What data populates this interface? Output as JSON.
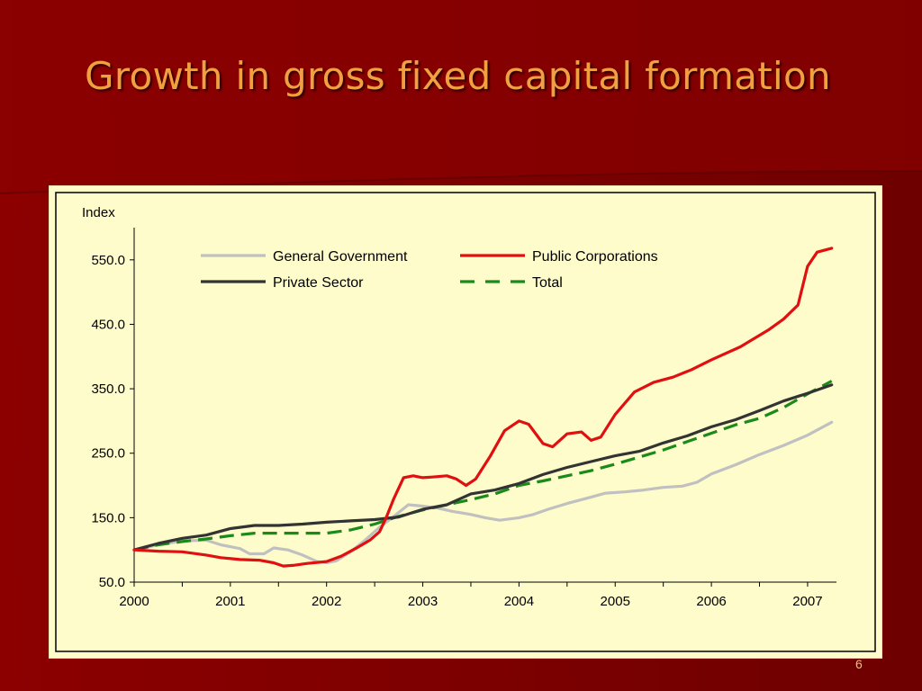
{
  "slide": {
    "title": "Growth in gross fixed capital formation",
    "page_number": "6",
    "colors": {
      "background": "#7a0000",
      "title": "#f0a040",
      "chart_background": "#fffccc"
    }
  },
  "chart_data": {
    "type": "line",
    "title": "",
    "xlabel": "",
    "ylabel": "Index",
    "ylim": [
      50,
      600
    ],
    "xlim": [
      2000,
      2007.3
    ],
    "y_ticks": [
      50,
      150,
      250,
      350,
      450,
      550
    ],
    "y_tick_labels": [
      "50.0",
      "150.0",
      "250.0",
      "350.0",
      "450.0",
      "550.0"
    ],
    "x_ticks": [
      2000,
      2001,
      2002,
      2003,
      2004,
      2005,
      2006,
      2007
    ],
    "x_tick_labels": [
      "2000",
      "2001",
      "2002",
      "2003",
      "2004",
      "2005",
      "2006",
      "2007"
    ],
    "grid": false,
    "legend_position": "top",
    "series": [
      {
        "name": "General Government",
        "color": "#c0c0c0",
        "dash": "solid",
        "points": [
          [
            2000.0,
            100
          ],
          [
            2000.25,
            108
          ],
          [
            2000.5,
            114
          ],
          [
            2000.75,
            115
          ],
          [
            2000.9,
            108
          ],
          [
            2001.1,
            102
          ],
          [
            2001.2,
            94
          ],
          [
            2001.35,
            94
          ],
          [
            2001.45,
            103
          ],
          [
            2001.6,
            100
          ],
          [
            2001.75,
            92
          ],
          [
            2001.9,
            82
          ],
          [
            2002.0,
            80
          ],
          [
            2002.1,
            83
          ],
          [
            2002.25,
            97
          ],
          [
            2002.4,
            115
          ],
          [
            2002.55,
            135
          ],
          [
            2002.7,
            152
          ],
          [
            2002.85,
            170
          ],
          [
            2003.0,
            168
          ],
          [
            2003.15,
            165
          ],
          [
            2003.3,
            160
          ],
          [
            2003.5,
            155
          ],
          [
            2003.65,
            150
          ],
          [
            2003.8,
            146
          ],
          [
            2004.0,
            150
          ],
          [
            2004.15,
            155
          ],
          [
            2004.3,
            163
          ],
          [
            2004.5,
            172
          ],
          [
            2004.7,
            180
          ],
          [
            2004.9,
            188
          ],
          [
            2005.1,
            190
          ],
          [
            2005.3,
            193
          ],
          [
            2005.5,
            197
          ],
          [
            2005.7,
            199
          ],
          [
            2005.85,
            205
          ],
          [
            2006.0,
            218
          ],
          [
            2006.25,
            232
          ],
          [
            2006.5,
            248
          ],
          [
            2006.75,
            262
          ],
          [
            2007.0,
            278
          ],
          [
            2007.25,
            298
          ]
        ]
      },
      {
        "name": "Public Corporations",
        "color": "#e01010",
        "dash": "solid",
        "points": [
          [
            2000.0,
            100
          ],
          [
            2000.25,
            98
          ],
          [
            2000.5,
            97
          ],
          [
            2000.75,
            92
          ],
          [
            2000.9,
            88
          ],
          [
            2001.1,
            85
          ],
          [
            2001.3,
            84
          ],
          [
            2001.45,
            80
          ],
          [
            2001.55,
            75
          ],
          [
            2001.65,
            76
          ],
          [
            2001.8,
            79
          ],
          [
            2002.0,
            82
          ],
          [
            2002.15,
            90
          ],
          [
            2002.3,
            102
          ],
          [
            2002.45,
            115
          ],
          [
            2002.55,
            128
          ],
          [
            2002.62,
            150
          ],
          [
            2002.7,
            180
          ],
          [
            2002.8,
            212
          ],
          [
            2002.9,
            215
          ],
          [
            2003.0,
            212
          ],
          [
            2003.1,
            213
          ],
          [
            2003.25,
            215
          ],
          [
            2003.35,
            210
          ],
          [
            2003.45,
            200
          ],
          [
            2003.55,
            210
          ],
          [
            2003.7,
            245
          ],
          [
            2003.85,
            285
          ],
          [
            2004.0,
            300
          ],
          [
            2004.1,
            295
          ],
          [
            2004.25,
            265
          ],
          [
            2004.35,
            260
          ],
          [
            2004.5,
            280
          ],
          [
            2004.65,
            283
          ],
          [
            2004.75,
            270
          ],
          [
            2004.85,
            275
          ],
          [
            2005.0,
            310
          ],
          [
            2005.2,
            345
          ],
          [
            2005.4,
            360
          ],
          [
            2005.6,
            368
          ],
          [
            2005.8,
            380
          ],
          [
            2006.0,
            395
          ],
          [
            2006.3,
            415
          ],
          [
            2006.6,
            442
          ],
          [
            2006.75,
            458
          ],
          [
            2006.9,
            480
          ],
          [
            2007.0,
            540
          ],
          [
            2007.1,
            562
          ],
          [
            2007.25,
            568
          ]
        ]
      },
      {
        "name": "Private Sector",
        "color": "#333333",
        "dash": "solid",
        "points": [
          [
            2000.0,
            100
          ],
          [
            2000.25,
            110
          ],
          [
            2000.5,
            118
          ],
          [
            2000.75,
            123
          ],
          [
            2001.0,
            133
          ],
          [
            2001.25,
            138
          ],
          [
            2001.5,
            138
          ],
          [
            2001.75,
            140
          ],
          [
            2002.0,
            143
          ],
          [
            2002.25,
            145
          ],
          [
            2002.5,
            147
          ],
          [
            2002.75,
            151
          ],
          [
            2003.0,
            163
          ],
          [
            2003.25,
            170
          ],
          [
            2003.5,
            187
          ],
          [
            2003.75,
            193
          ],
          [
            2004.0,
            203
          ],
          [
            2004.25,
            217
          ],
          [
            2004.5,
            228
          ],
          [
            2004.75,
            237
          ],
          [
            2005.0,
            246
          ],
          [
            2005.25,
            253
          ],
          [
            2005.5,
            266
          ],
          [
            2005.75,
            277
          ],
          [
            2006.0,
            291
          ],
          [
            2006.25,
            302
          ],
          [
            2006.5,
            316
          ],
          [
            2006.75,
            331
          ],
          [
            2007.0,
            343
          ],
          [
            2007.25,
            356
          ]
        ]
      },
      {
        "name": "Total",
        "color": "#1a8a1a",
        "dash": "dashed",
        "points": [
          [
            2000.0,
            100
          ],
          [
            2000.25,
            108
          ],
          [
            2000.5,
            113
          ],
          [
            2000.75,
            117
          ],
          [
            2001.0,
            122
          ],
          [
            2001.25,
            126
          ],
          [
            2001.5,
            126
          ],
          [
            2001.75,
            126
          ],
          [
            2002.0,
            126
          ],
          [
            2002.25,
            131
          ],
          [
            2002.5,
            140
          ],
          [
            2002.75,
            152
          ],
          [
            2003.0,
            162
          ],
          [
            2003.25,
            170
          ],
          [
            2003.5,
            178
          ],
          [
            2003.75,
            187
          ],
          [
            2004.0,
            200
          ],
          [
            2004.25,
            207
          ],
          [
            2004.5,
            215
          ],
          [
            2004.75,
            223
          ],
          [
            2005.0,
            233
          ],
          [
            2005.25,
            244
          ],
          [
            2005.5,
            255
          ],
          [
            2005.75,
            268
          ],
          [
            2006.0,
            281
          ],
          [
            2006.25,
            294
          ],
          [
            2006.5,
            304
          ],
          [
            2006.75,
            321
          ],
          [
            2007.0,
            342
          ],
          [
            2007.25,
            362
          ]
        ]
      }
    ]
  }
}
